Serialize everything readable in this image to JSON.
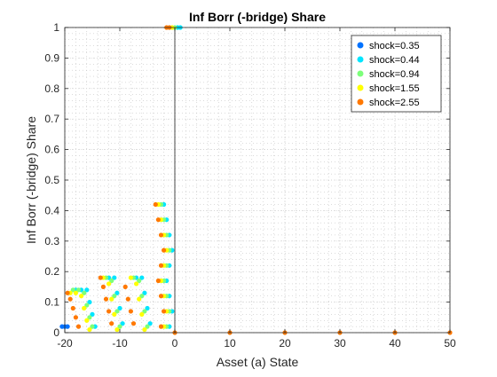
{
  "chart_data": {
    "type": "scatter",
    "title": "Inf Borr (-bridge) Share",
    "xlabel": "Asset (a) State",
    "ylabel": "Inf Borr (-bridge) Share",
    "xlim": [
      -20,
      50
    ],
    "ylim": [
      0,
      1
    ],
    "x_ticks": [
      -20,
      -10,
      0,
      10,
      20,
      30,
      40,
      50
    ],
    "y_ticks": [
      0,
      0.1,
      0.2,
      0.3,
      0.4,
      0.5,
      0.6,
      0.7,
      0.8,
      0.9,
      1
    ],
    "grid": true,
    "minor_grid": true,
    "legend_position": "top-right",
    "series": [
      {
        "name": "shock=0.35",
        "color": "#0072ff",
        "points": [
          [
            -20.5,
            0.02
          ],
          [
            -20,
            0.02
          ],
          [
            -19.5,
            0.02
          ]
        ]
      },
      {
        "name": "shock=0.44",
        "color": "#00e5ff",
        "points": [
          [
            -18,
            0.14
          ],
          [
            -17,
            0.14
          ],
          [
            -16,
            0.14
          ],
          [
            -15.5,
            0.1
          ],
          [
            -15,
            0.06
          ],
          [
            -14.5,
            0.02
          ],
          [
            -12,
            0.18
          ],
          [
            -11,
            0.18
          ],
          [
            -10.5,
            0.13
          ],
          [
            -10,
            0.08
          ],
          [
            -9.5,
            0.03
          ],
          [
            -7,
            0.18
          ],
          [
            -6,
            0.18
          ],
          [
            -5.5,
            0.13
          ],
          [
            -5,
            0.08
          ],
          [
            -4.5,
            0.03
          ],
          [
            -2,
            0.42
          ],
          [
            -1.5,
            0.37
          ],
          [
            -1,
            0.32
          ],
          [
            -0.5,
            0.27
          ],
          [
            -1,
            0.22
          ],
          [
            -1.5,
            0.17
          ],
          [
            -1,
            0.12
          ],
          [
            -0.5,
            0.07
          ],
          [
            -1,
            0.02
          ],
          [
            0.5,
            1
          ],
          [
            1,
            1
          ]
        ]
      },
      {
        "name": "shock=0.94",
        "color": "#7dff7a",
        "points": [
          [
            -18.5,
            0.14
          ],
          [
            -17.5,
            0.14
          ],
          [
            -16.5,
            0.13
          ],
          [
            -16,
            0.09
          ],
          [
            -15.5,
            0.05
          ],
          [
            -15,
            0.02
          ],
          [
            -12.5,
            0.18
          ],
          [
            -11.5,
            0.17
          ],
          [
            -11,
            0.12
          ],
          [
            -10.5,
            0.07
          ],
          [
            -10,
            0.02
          ],
          [
            -7.5,
            0.18
          ],
          [
            -6.5,
            0.17
          ],
          [
            -6,
            0.12
          ],
          [
            -5.5,
            0.07
          ],
          [
            -5,
            0.02
          ],
          [
            -2.5,
            0.42
          ],
          [
            -2,
            0.37
          ],
          [
            -1.5,
            0.32
          ],
          [
            -1,
            0.27
          ],
          [
            -1.5,
            0.22
          ],
          [
            -2,
            0.17
          ],
          [
            -1.5,
            0.12
          ],
          [
            -1,
            0.07
          ],
          [
            -1.5,
            0.02
          ],
          [
            0,
            1
          ]
        ]
      },
      {
        "name": "shock=1.55",
        "color": "#ffff00",
        "points": [
          [
            -19,
            0.13
          ],
          [
            -18,
            0.13
          ],
          [
            -17,
            0.12
          ],
          [
            -16.5,
            0.08
          ],
          [
            -16,
            0.04
          ],
          [
            -15.5,
            0.01
          ],
          [
            -13,
            0.18
          ],
          [
            -12,
            0.16
          ],
          [
            -11.5,
            0.11
          ],
          [
            -11,
            0.06
          ],
          [
            -10.5,
            0.01
          ],
          [
            -8,
            0.18
          ],
          [
            -7,
            0.16
          ],
          [
            -6.5,
            0.11
          ],
          [
            -6,
            0.06
          ],
          [
            -5.5,
            0.01
          ],
          [
            -3,
            0.42
          ],
          [
            -2.5,
            0.37
          ],
          [
            -2,
            0.32
          ],
          [
            -1.5,
            0.27
          ],
          [
            -2,
            0.22
          ],
          [
            -2.5,
            0.17
          ],
          [
            -2,
            0.12
          ],
          [
            -1.5,
            0.07
          ],
          [
            -2,
            0.02
          ],
          [
            -0.5,
            1
          ]
        ]
      },
      {
        "name": "shock=2.55",
        "color": "#ff7800",
        "points": [
          [
            -19.5,
            0.13
          ],
          [
            -19,
            0.11
          ],
          [
            -18.5,
            0.08
          ],
          [
            -18,
            0.05
          ],
          [
            -17.5,
            0.02
          ],
          [
            -13.5,
            0.18
          ],
          [
            -13,
            0.15
          ],
          [
            -12.5,
            0.11
          ],
          [
            -12,
            0.07
          ],
          [
            -11.5,
            0.03
          ],
          [
            -9,
            0.15
          ],
          [
            -8.5,
            0.11
          ],
          [
            -8,
            0.07
          ],
          [
            -7.5,
            0.03
          ],
          [
            -3.5,
            0.42
          ],
          [
            -3,
            0.37
          ],
          [
            -2.5,
            0.32
          ],
          [
            -2,
            0.27
          ],
          [
            -2.5,
            0.22
          ],
          [
            -3,
            0.17
          ],
          [
            -2.5,
            0.12
          ],
          [
            -2,
            0.07
          ],
          [
            -2.5,
            0.02
          ],
          [
            -1,
            1
          ],
          [
            -1.5,
            1
          ],
          [
            0,
            0
          ],
          [
            10,
            0
          ],
          [
            20,
            0
          ],
          [
            30,
            0
          ],
          [
            40,
            0
          ],
          [
            50,
            0
          ]
        ]
      }
    ]
  }
}
